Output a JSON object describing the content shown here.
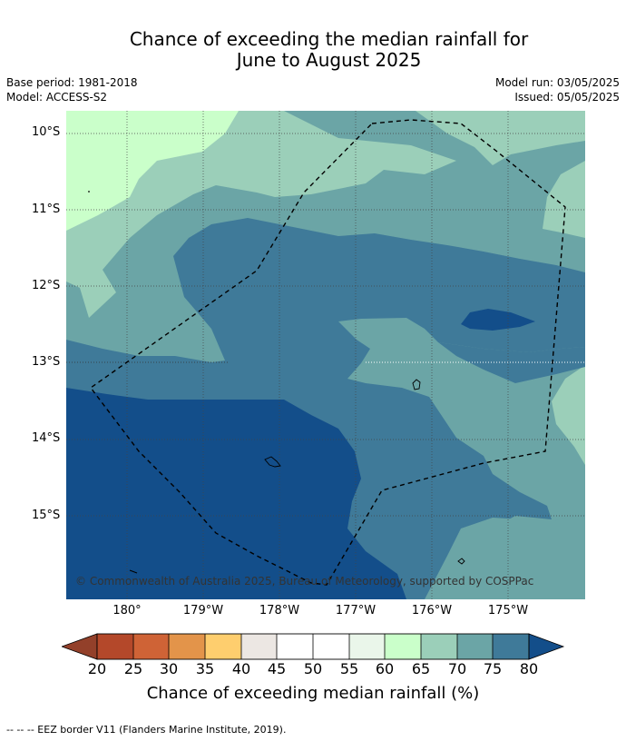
{
  "title_line1": "Chance of exceeding the median rainfall for",
  "title_line2": "June to August 2025",
  "base_period": "Base period: 1981-2018",
  "model": "Model: ACCESS-S2",
  "model_run": "Model run: 03/05/2025",
  "issued": "Issued: 05/05/2025",
  "lat_labels": [
    "10°S",
    "11°S",
    "12°S",
    "13°S",
    "14°S",
    "15°S"
  ],
  "lon_labels": [
    "180°",
    "179°W",
    "178°W",
    "177°W",
    "176°W",
    "175°W"
  ],
  "copyright": "© Commonwealth of Australia 2025, Bureau of Meteorology, supported by COSPPac",
  "colorbar": {
    "ticks": [
      "20",
      "25",
      "30",
      "35",
      "40",
      "45",
      "50",
      "55",
      "60",
      "65",
      "70",
      "75",
      "80"
    ],
    "label": "Chance of exceeding median rainfall (%)",
    "colors": {
      "below_20": "#93402a",
      "20-25": "#b4482a",
      "25-30": "#cf6336",
      "30-35": "#e3944a",
      "35-40": "#fece6e",
      "40-45": "#ece7e3",
      "45-50": "#ffffff",
      "50-55": "#ffffff",
      "55-60": "#eaf6ea",
      "60-65": "#caffca",
      "65-70": "#9bcfb9",
      "70-75": "#6ba5a6",
      "75-80": "#3f7a99",
      "above_80": "#134e8a"
    }
  },
  "legend_note": "--  --  -- EEZ border V11 (Flanders Marine Institute, 2019)."
}
